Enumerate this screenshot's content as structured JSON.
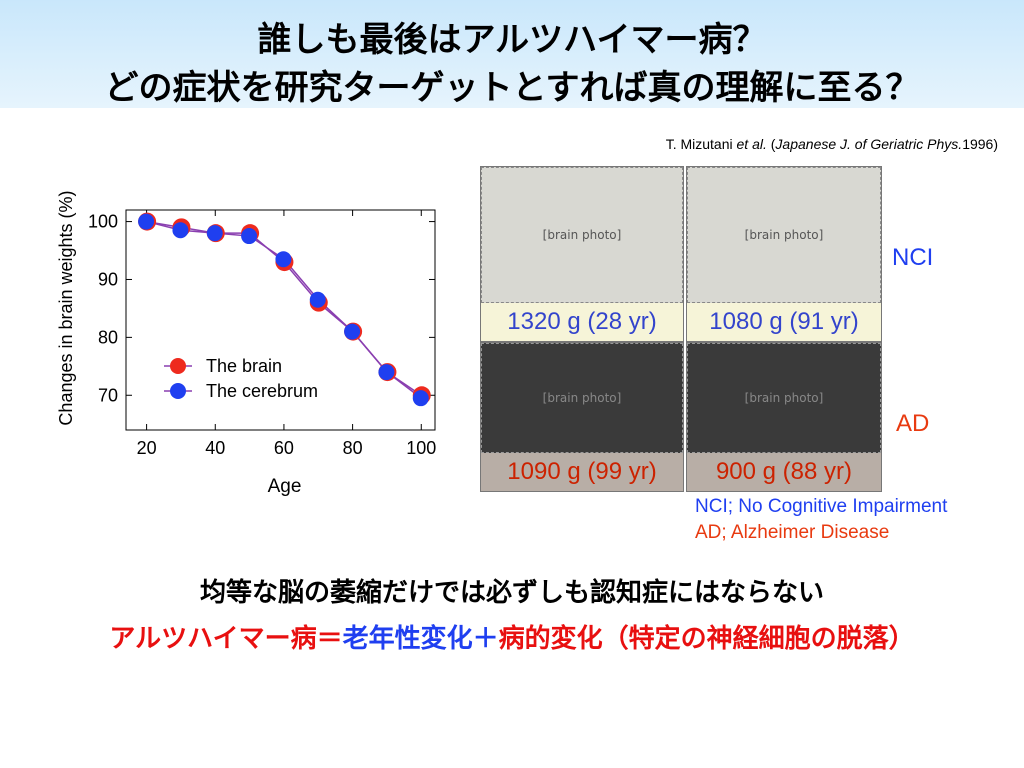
{
  "title": {
    "line1": "誰しも最後はアルツハイマー病？",
    "line2": "どの症状を研究ターゲットとすれば真の理解に至る？"
  },
  "citation": {
    "author": "T. Mizutani ",
    "etal": "et al.",
    "mid": " (",
    "journal": "Japanese J. of Geriatric Phys.",
    "year": "1996)"
  },
  "chart_data": {
    "type": "line",
    "xlabel": "Age",
    "ylabel": "Changes in brain weights (%)",
    "xlim": [
      14,
      104
    ],
    "ylim": [
      64,
      102
    ],
    "xticks": [
      20,
      40,
      60,
      80,
      100
    ],
    "yticks": [
      70,
      80,
      90,
      100
    ],
    "x": [
      20,
      30,
      40,
      50,
      60,
      70,
      80,
      90,
      100
    ],
    "series": [
      {
        "name": "The brain",
        "color": "#ee2a1e",
        "values": [
          100,
          99,
          98,
          98,
          93,
          86,
          81,
          74,
          70
        ]
      },
      {
        "name": "The cerebrum",
        "color": "#1f3ff0",
        "values": [
          100,
          98.5,
          98,
          97.5,
          93.5,
          86.5,
          81,
          74,
          69.5
        ]
      }
    ],
    "legend": "center-left"
  },
  "photos": [
    {
      "caption": "1320 g (28 yr)",
      "letter": "a",
      "style": "blue"
    },
    {
      "caption": "1080 g (91 yr)",
      "letter": "b",
      "style": "blue"
    },
    {
      "caption": "1090 g (99 yr)",
      "letter": "c",
      "style": "red"
    },
    {
      "caption": "900 g (88 yr)",
      "letter": "d",
      "style": "red"
    }
  ],
  "groups": {
    "nci": "NCI",
    "ad": "AD",
    "nci_color": "#1f3ff0",
    "ad_color": "#e83a10"
  },
  "notes": {
    "nci": "NCI; No Cognitive Impairment",
    "ad": "AD; Alzheimer Disease"
  },
  "summary": {
    "line1": "均等な脳の萎縮だけでは必ずしも認知症にはならない",
    "part1": "アルツハイマー病＝",
    "part2": "老年性変化",
    "part3": "＋",
    "part4": "病的変化（特定の神経細胞の脱落）",
    "red": "#e81010",
    "blue": "#1f3ff0"
  }
}
